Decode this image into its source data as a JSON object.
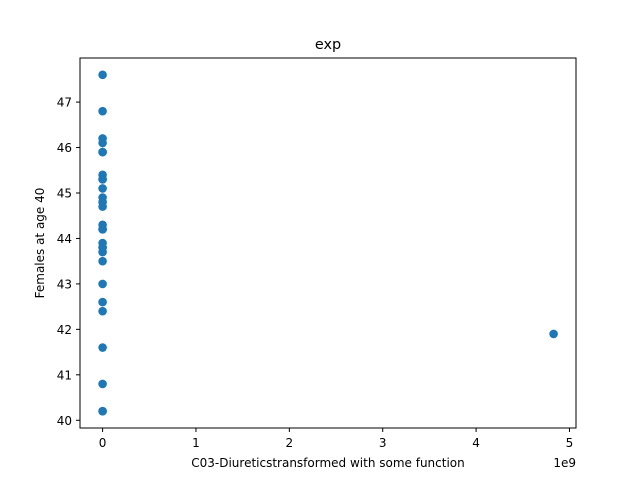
{
  "chart_data": {
    "type": "scatter",
    "title": "exp",
    "xlabel": "C03-Diureticstransformed with some function",
    "ylabel": "Females at age 40",
    "x_offset_text": "1e9",
    "xlim": [
      -0.242,
      5.07
    ],
    "ylim": [
      39.83,
      47.97
    ],
    "xticks": [
      0,
      1,
      2,
      3,
      4,
      5
    ],
    "yticks": [
      40,
      41,
      42,
      43,
      44,
      45,
      46,
      47
    ],
    "grid": false,
    "marker_color": "#1f77b4",
    "series": [
      {
        "x_scale": "1e9",
        "x": [
          0,
          0,
          0,
          0,
          0,
          0,
          0,
          0,
          0,
          0,
          0,
          0,
          0,
          0,
          0,
          0,
          0,
          0,
          0,
          0,
          0,
          0,
          0,
          0,
          0,
          0,
          0,
          0,
          4.83
        ],
        "y": [
          47.6,
          46.8,
          46.2,
          46.1,
          45.9,
          45.4,
          45.3,
          45.1,
          44.9,
          44.8,
          44.7,
          44.3,
          44.2,
          43.9,
          43.8,
          43.7,
          43.5,
          43.0,
          42.6,
          42.4,
          41.6,
          40.8,
          40.2,
          40.2,
          45.9,
          44.2,
          43.8,
          45.3,
          41.9
        ]
      }
    ]
  }
}
